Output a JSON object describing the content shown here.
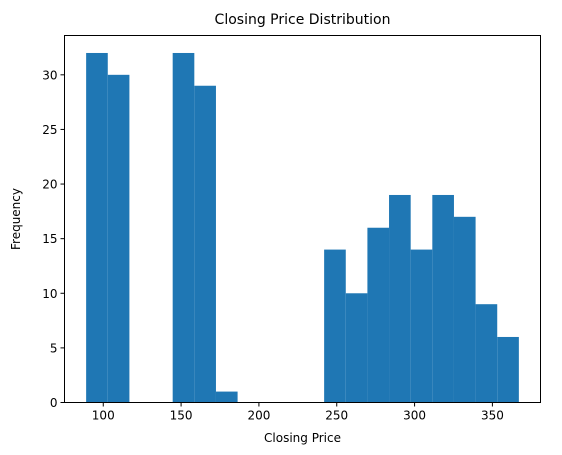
{
  "chart_data": {
    "type": "bar",
    "title": "Closing Price Distribution",
    "xlabel": "Closing Price",
    "ylabel": "Frequency",
    "bin_width": 13.9,
    "bins": [
      {
        "start": 89.0,
        "end": 102.9,
        "count": 32
      },
      {
        "start": 102.9,
        "end": 116.8,
        "count": 30
      },
      {
        "start": 116.8,
        "end": 130.7,
        "count": 0
      },
      {
        "start": 130.7,
        "end": 144.6,
        "count": 0
      },
      {
        "start": 144.6,
        "end": 158.5,
        "count": 32
      },
      {
        "start": 158.5,
        "end": 172.4,
        "count": 29
      },
      {
        "start": 172.4,
        "end": 186.3,
        "count": 1
      },
      {
        "start": 186.3,
        "end": 200.2,
        "count": 0
      },
      {
        "start": 200.2,
        "end": 214.1,
        "count": 0
      },
      {
        "start": 214.1,
        "end": 228.0,
        "count": 0
      },
      {
        "start": 228.0,
        "end": 241.9,
        "count": 0
      },
      {
        "start": 241.9,
        "end": 255.8,
        "count": 14
      },
      {
        "start": 255.8,
        "end": 269.7,
        "count": 10
      },
      {
        "start": 269.7,
        "end": 283.6,
        "count": 16
      },
      {
        "start": 283.6,
        "end": 297.5,
        "count": 19
      },
      {
        "start": 297.5,
        "end": 311.4,
        "count": 14
      },
      {
        "start": 311.4,
        "end": 325.3,
        "count": 19
      },
      {
        "start": 325.3,
        "end": 339.2,
        "count": 17
      },
      {
        "start": 339.2,
        "end": 353.1,
        "count": 9
      },
      {
        "start": 353.1,
        "end": 367.0,
        "count": 6
      }
    ],
    "xlim": [
      75.1,
      380.9
    ],
    "ylim": [
      0,
      33.6
    ],
    "xticks": [
      100,
      150,
      200,
      250,
      300,
      350
    ],
    "yticks": [
      0,
      5,
      10,
      15,
      20,
      25,
      30
    ],
    "bar_color": "#1f77b4",
    "grid": false
  }
}
